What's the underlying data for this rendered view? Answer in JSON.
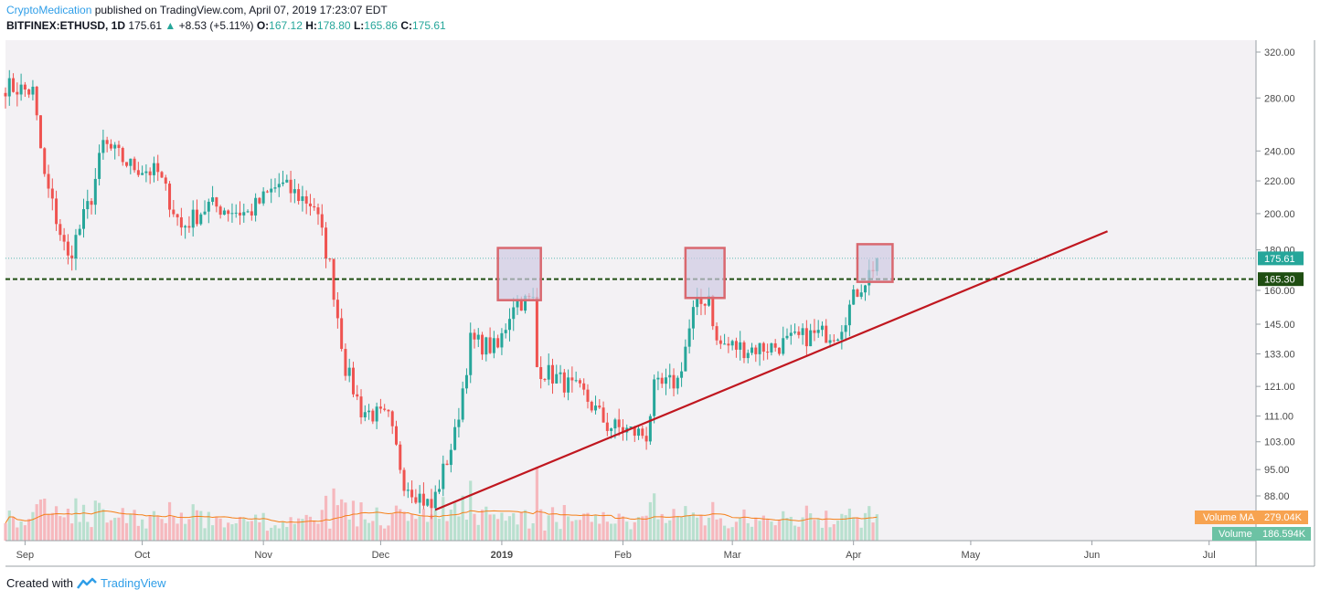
{
  "header": {
    "author": "CryptoMedication",
    "published": " published on TradingView.com, April 07, 2019 17:23:07 EDT",
    "symbol": "BITFINEX:ETHUSD, 1D",
    "last": "175.61",
    "change_arrow": "▲",
    "change": "+8.53 (+5.11%)",
    "o_label": "O:",
    "o_value": "167.12",
    "h_label": "H:",
    "h_value": "178.80",
    "l_label": "L:",
    "l_value": "165.86",
    "c_label": "C:",
    "c_value": "175.61"
  },
  "footer": {
    "created_with": "Created with",
    "brand": "TradingView"
  },
  "colors": {
    "up": "#26a69a",
    "down": "#ef5350",
    "up_volume": "#b9e0cf",
    "down_volume": "#f6b8bd",
    "background": "#f3f1f4",
    "trendline": "#c0171f",
    "support_line": "#1f4e12",
    "box_border": "#d9686f",
    "box_fill": "#cfcbe3",
    "volume_ma": "#f57f17"
  },
  "chart_data": {
    "type": "candlestick",
    "price_axis": {
      "scale": "log",
      "ticks": [
        "320.00",
        "280.00",
        "240.00",
        "220.00",
        "200.00",
        "180.00",
        "160.00",
        "145.00",
        "133.00",
        "121.00",
        "111.00",
        "103.00",
        "95.00",
        "88.00"
      ]
    },
    "time_axis": {
      "labels": [
        "Sep",
        "Oct",
        "Nov",
        "Dec",
        "2019",
        "Feb",
        "Mar",
        "Apr",
        "May",
        "Jun",
        "Jul"
      ],
      "start": "2018-08-27",
      "end": "2019-07-13"
    },
    "last_price_label": "175.61",
    "support_level_label": "165.30",
    "volume_ma_label": "Volume MA",
    "volume_ma_value": "279.04K",
    "volume_label": "Volume",
    "volume_value": "186.594K",
    "support_level": 165.3,
    "last_price": 175.61,
    "trendline": {
      "start": {
        "date": "2018-12-15",
        "price": 84.5
      },
      "end": {
        "date": "2019-06-05",
        "price": 190.0
      }
    },
    "resistance_boxes": [
      {
        "start": "2018-12-31",
        "end": "2019-01-11",
        "low": 155.5,
        "high": 181.0
      },
      {
        "start": "2019-02-17",
        "end": "2019-02-27",
        "low": 156.5,
        "high": 181.0
      },
      {
        "start": "2019-04-02",
        "end": "2019-04-11",
        "low": 164.0,
        "high": 183.0
      }
    ],
    "ohlc_anchors": [
      [
        "2018-08-27",
        290
      ],
      [
        "2018-09-03",
        285
      ],
      [
        "2018-09-06",
        222
      ],
      [
        "2018-09-12",
        175
      ],
      [
        "2018-09-18",
        210
      ],
      [
        "2018-09-21",
        245
      ],
      [
        "2018-09-28",
        230
      ],
      [
        "2018-10-05",
        225
      ],
      [
        "2018-10-11",
        192
      ],
      [
        "2018-10-18",
        205
      ],
      [
        "2018-10-28",
        200
      ],
      [
        "2018-11-05",
        218
      ],
      [
        "2018-11-14",
        205
      ],
      [
        "2018-11-18",
        172
      ],
      [
        "2018-11-22",
        128
      ],
      [
        "2018-11-26",
        113
      ],
      [
        "2018-12-03",
        110
      ],
      [
        "2018-12-07",
        92
      ],
      [
        "2018-12-14",
        85
      ],
      [
        "2018-12-20",
        105
      ],
      [
        "2018-12-24",
        138
      ],
      [
        "2018-12-31",
        135
      ],
      [
        "2019-01-04",
        155
      ],
      [
        "2019-01-09",
        155
      ],
      [
        "2019-01-10",
        128
      ],
      [
        "2019-01-15",
        124
      ],
      [
        "2019-01-22",
        118
      ],
      [
        "2019-01-28",
        108
      ],
      [
        "2019-02-07",
        105
      ],
      [
        "2019-02-09",
        120
      ],
      [
        "2019-02-15",
        123
      ],
      [
        "2019-02-19",
        150
      ],
      [
        "2019-02-23",
        158
      ],
      [
        "2019-02-25",
        137
      ],
      [
        "2019-03-05",
        135
      ],
      [
        "2019-03-12",
        136
      ],
      [
        "2019-03-20",
        140
      ],
      [
        "2019-03-28",
        142
      ],
      [
        "2019-04-02",
        160
      ],
      [
        "2019-04-05",
        168
      ],
      [
        "2019-04-07",
        175.61
      ]
    ]
  }
}
